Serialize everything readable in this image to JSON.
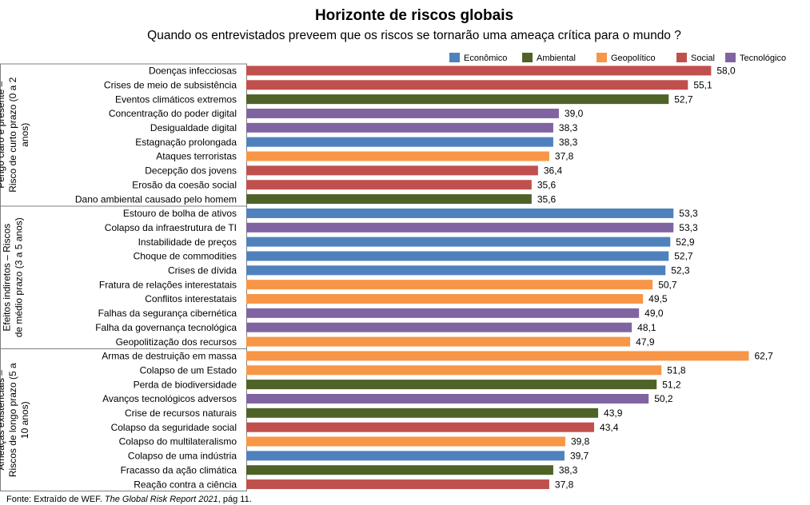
{
  "chart_data": {
    "type": "bar",
    "orientation": "horizontal",
    "title": "Horizonte de riscos globais",
    "subtitle": "Quando os entrevistados preveem que os riscos se tornarão uma ameaça crítica para o mundo ?",
    "xlim": [
      0,
      70
    ],
    "grid": false,
    "legend_position": "top-right",
    "legend": [
      {
        "name": "Econômico",
        "color": "#4F81BD"
      },
      {
        "name": "Ambiental",
        "color": "#4F6228"
      },
      {
        "name": "Geopolítico",
        "color": "#F79646"
      },
      {
        "name": "Social",
        "color": "#C0504D"
      },
      {
        "name": "Tecnológico",
        "color": "#8064A2"
      }
    ],
    "groups": [
      {
        "label": "Perigo claro e presente – Risco de curto prazo (0 a 2 anos)",
        "items": [
          {
            "label": "Doenças infecciosas",
            "value": 58.0,
            "value_label": "58,0",
            "category": "Social"
          },
          {
            "label": "Crises de meio de subsistência",
            "value": 55.1,
            "value_label": "55,1",
            "category": "Social"
          },
          {
            "label": "Eventos climáticos extremos",
            "value": 52.7,
            "value_label": "52,7",
            "category": "Ambiental"
          },
          {
            "label": "Concentração do poder digital",
            "value": 39.0,
            "value_label": "39,0",
            "category": "Tecnológico"
          },
          {
            "label": "Desigualdade digital",
            "value": 38.3,
            "value_label": "38,3",
            "category": "Tecnológico"
          },
          {
            "label": "Estagnação prolongada",
            "value": 38.3,
            "value_label": "38,3",
            "category": "Econômico"
          },
          {
            "label": "Ataques terroristas",
            "value": 37.8,
            "value_label": "37,8",
            "category": "Geopolítico"
          },
          {
            "label": "Decepção dos jovens",
            "value": 36.4,
            "value_label": "36,4",
            "category": "Social"
          },
          {
            "label": "Erosão da coesão social",
            "value": 35.6,
            "value_label": "35,6",
            "category": "Social"
          },
          {
            "label": "Dano ambiental causado pelo homem",
            "value": 35.6,
            "value_label": "35,6",
            "category": "Ambiental"
          }
        ]
      },
      {
        "label": "Efeitos indiretos – Riscos de médio prazo (3 a 5 anos)",
        "items": [
          {
            "label": "Estouro de bolha de ativos",
            "value": 53.3,
            "value_label": "53,3",
            "category": "Econômico"
          },
          {
            "label": "Colapso da infraestrutura de TI",
            "value": 53.3,
            "value_label": "53,3",
            "category": "Tecnológico"
          },
          {
            "label": "Instabilidade de preços",
            "value": 52.9,
            "value_label": "52,9",
            "category": "Econômico"
          },
          {
            "label": "Choque de commodities",
            "value": 52.7,
            "value_label": "52,7",
            "category": "Econômico"
          },
          {
            "label": "Crises de dívida",
            "value": 52.3,
            "value_label": "52,3",
            "category": "Econômico"
          },
          {
            "label": "Fratura de relações interestatais",
            "value": 50.7,
            "value_label": "50,7",
            "category": "Geopolítico"
          },
          {
            "label": "Conflitos interestatais",
            "value": 49.5,
            "value_label": "49,5",
            "category": "Geopolítico"
          },
          {
            "label": "Falhas da segurança cibernética",
            "value": 49.0,
            "value_label": "49,0",
            "category": "Tecnológico"
          },
          {
            "label": "Falha da governança tecnológica",
            "value": 48.1,
            "value_label": "48,1",
            "category": "Tecnológico"
          },
          {
            "label": "Geopolitização dos recursos",
            "value": 47.9,
            "value_label": "47,9",
            "category": "Geopolítico"
          }
        ]
      },
      {
        "label": "Ameaças existenciais – Riscos de longo prazo (5 a 10 anos)",
        "items": [
          {
            "label": "Armas de destruição em massa",
            "value": 62.7,
            "value_label": "62,7",
            "category": "Geopolítico"
          },
          {
            "label": "Colapso de um Estado",
            "value": 51.8,
            "value_label": "51,8",
            "category": "Geopolítico"
          },
          {
            "label": "Perda de biodiversidade",
            "value": 51.2,
            "value_label": "51,2",
            "category": "Ambiental"
          },
          {
            "label": "Avanços tecnológicos adversos",
            "value": 50.2,
            "value_label": "50,2",
            "category": "Tecnológico"
          },
          {
            "label": "Crise de recursos naturais",
            "value": 43.9,
            "value_label": "43,9",
            "category": "Ambiental"
          },
          {
            "label": "Colapso da seguridade social",
            "value": 43.4,
            "value_label": "43,4",
            "category": "Social"
          },
          {
            "label": "Colapso do multilateralismo",
            "value": 39.8,
            "value_label": "39,8",
            "category": "Geopolítico"
          },
          {
            "label": "Colapso de uma indústria",
            "value": 39.7,
            "value_label": "39,7",
            "category": "Econômico"
          },
          {
            "label": "Fracasso da ação climática",
            "value": 38.3,
            "value_label": "38,3",
            "category": "Ambiental"
          },
          {
            "label": "Reação contra a ciência",
            "value": 37.8,
            "value_label": "37,8",
            "category": "Social"
          }
        ]
      }
    ],
    "source_prefix": "Fonte:  Extraído de WEF. ",
    "source_title": "The Global Risk Report 2021",
    "source_suffix": ", pág 11."
  }
}
